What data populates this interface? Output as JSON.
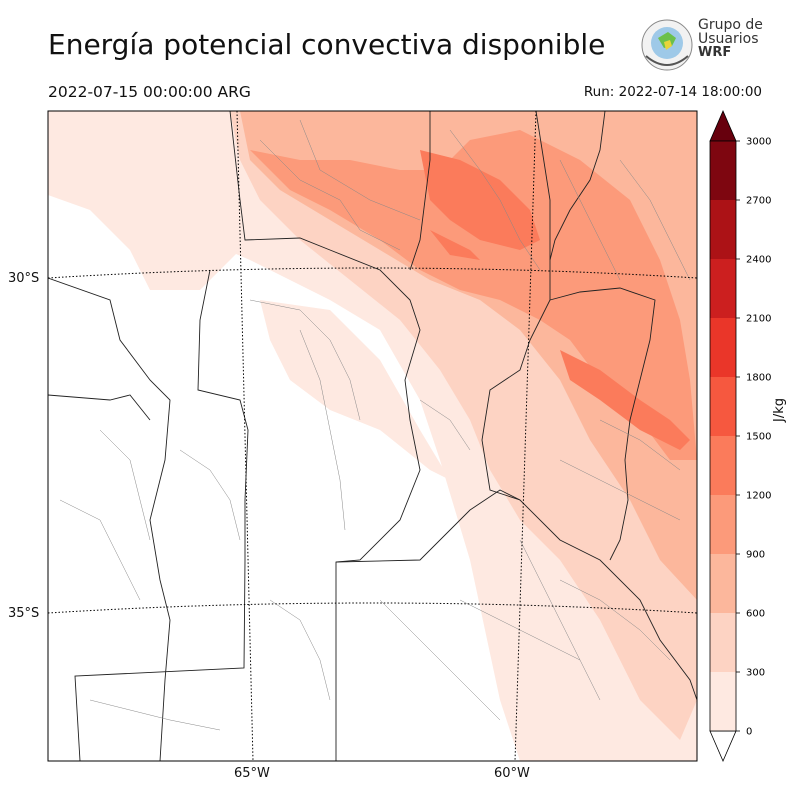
{
  "header": {
    "title": "Energía potencial convectiva disponible",
    "valid_time": "2022-07-15 00:00:00 ARG",
    "run_time": "Run: 2022-07-14 18:00:00"
  },
  "logo": {
    "line1": "Grupo de",
    "line2": "Usuarios",
    "line3": "WRF"
  },
  "map": {
    "lat_labels": [
      "30°S",
      "35°S"
    ],
    "lon_labels": [
      "65°W",
      "60°W"
    ]
  },
  "colorbar": {
    "unit": "J/kg",
    "levels": [
      0,
      300,
      600,
      900,
      1200,
      1500,
      1800,
      2100,
      2400,
      2700,
      3000
    ],
    "colors": [
      "#fee9e1",
      "#fdd3c3",
      "#fcb79c",
      "#fc9a7a",
      "#fb7b5b",
      "#f6583f",
      "#ea3629",
      "#cc1f1f",
      "#ac1216",
      "#7e0610"
    ],
    "extend_color": "#67000d"
  }
}
